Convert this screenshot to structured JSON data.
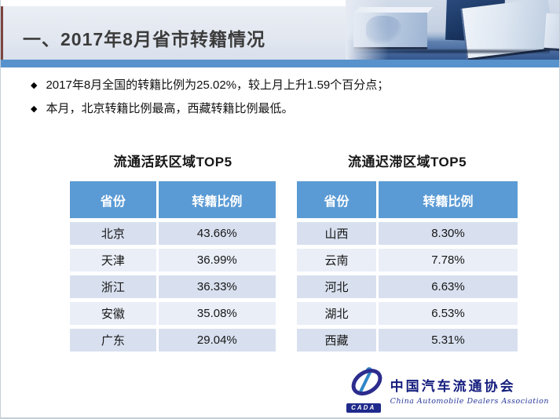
{
  "header": {
    "title": "一、2017年8月省市转籍情况"
  },
  "bullets": [
    "2017年8月全国的转籍比例为25.02%，较上月上升1.59个百分点；",
    "本月，北京转籍比例最高，西藏转籍比例最低。"
  ],
  "bullet_marker": "◆",
  "tables": [
    {
      "title": "流通活跃区域TOP5",
      "columns": [
        "省份",
        "转籍比例"
      ],
      "rows": [
        [
          "北京",
          "43.66%"
        ],
        [
          "天津",
          "36.99%"
        ],
        [
          "浙江",
          "36.33%"
        ],
        [
          "安徽",
          "35.08%"
        ],
        [
          "广东",
          "29.04%"
        ]
      ]
    },
    {
      "title": "流通迟滞区域TOP5",
      "columns": [
        "省份",
        "转籍比例"
      ],
      "rows": [
        [
          "山西",
          "8.30%"
        ],
        [
          "云南",
          "7.78%"
        ],
        [
          "河北",
          "6.63%"
        ],
        [
          "湖北",
          "6.53%"
        ],
        [
          "西藏",
          "5.31%"
        ]
      ]
    }
  ],
  "chart_data": [
    {
      "type": "table",
      "title": "流通活跃区域TOP5",
      "categories": [
        "北京",
        "天津",
        "浙江",
        "安徽",
        "广东"
      ],
      "values": [
        43.66,
        36.99,
        36.33,
        35.08,
        29.04
      ],
      "value_unit": "%",
      "columns": [
        "省份",
        "转籍比例"
      ]
    },
    {
      "type": "table",
      "title": "流通迟滞区域TOP5",
      "categories": [
        "山西",
        "云南",
        "河北",
        "湖北",
        "西藏"
      ],
      "values": [
        8.3,
        7.78,
        6.63,
        6.53,
        5.31
      ],
      "value_unit": "%",
      "columns": [
        "省份",
        "转籍比例"
      ]
    }
  ],
  "logo": {
    "acronym": "CADA",
    "name_cn": "中国汽车流通协会",
    "name_en": "China Automobile Dealers Association"
  },
  "colors": {
    "table_header_blue": "#5b9bd5",
    "divider_bar_blue": "#5792cc",
    "row_band_dark": "#d8e0ef",
    "row_band_light": "#e9eef7",
    "title_text": "#3c3c3c",
    "logo_navy": "#1f2a8c"
  }
}
